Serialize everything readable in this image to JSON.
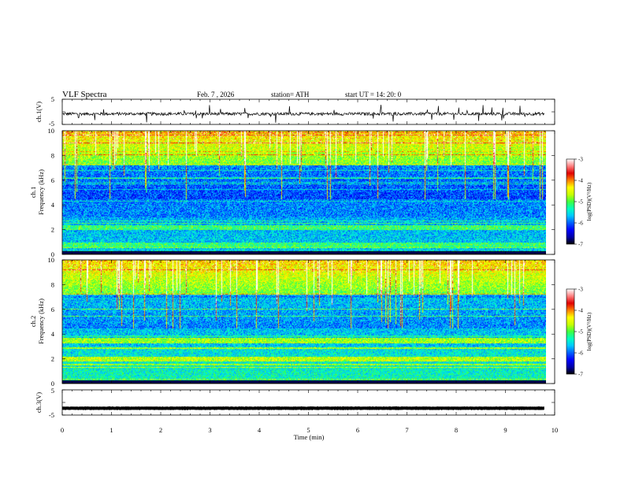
{
  "header": {
    "title": "VLF Spectra",
    "date": "Feb. 7 , 2026",
    "station": "station= ATH",
    "start_ut": "start UT =  14: 20: 0"
  },
  "colorbar": {
    "label": "log(PSD)(V²/Hz)",
    "ticks": [
      "-3",
      "-4",
      "-5",
      "-6",
      "-7"
    ],
    "colors": [
      "#000000",
      "#0000a8",
      "#0000ff",
      "#0060ff",
      "#00c8ff",
      "#00ffc0",
      "#40ff40",
      "#c8ff00",
      "#ffff00",
      "#ff8000",
      "#e00000",
      "#ff8080",
      "#ffffff"
    ]
  },
  "chart_data": [
    {
      "type": "line",
      "name": "ch1-waveform",
      "ylabel": "ch.1(V)",
      "yticks": [
        "5",
        "-5"
      ],
      "ylim": [
        -5,
        5
      ],
      "xlim": [
        0,
        10
      ],
      "baseline_value": -0.8,
      "noise_amplitude": 1.2,
      "data_end_min": 9.8
    },
    {
      "type": "heatmap",
      "name": "ch1-spectrogram",
      "ylabel": "ch.1\nFrequency (kHz)",
      "yticks": [
        "10",
        "8",
        "6",
        "4",
        "2",
        "0"
      ],
      "ylim": [
        0,
        10
      ],
      "xlim": [
        0,
        10
      ],
      "data_end_min": 9.8,
      "zlim": [
        -7,
        -3
      ]
    },
    {
      "type": "heatmap",
      "name": "ch2-spectrogram",
      "ylabel": "ch.2\nFrequency (kHz)",
      "yticks": [
        "10",
        "8",
        "6",
        "4",
        "2",
        "0"
      ],
      "ylim": [
        0,
        10
      ],
      "xlim": [
        0,
        10
      ],
      "data_end_min": 9.8,
      "zlim": [
        -7,
        -3
      ]
    },
    {
      "type": "line",
      "name": "ch3-waveform",
      "ylabel": "ch.3(V)",
      "yticks": [
        "5",
        "-5"
      ],
      "ylim": [
        -5,
        5
      ],
      "xlim": [
        0,
        10
      ],
      "baseline_value": -2.3,
      "noise_amplitude": 0.15,
      "data_end_min": 9.8
    }
  ],
  "xaxis": {
    "label": "Time (min)",
    "ticks": [
      "0",
      "1",
      "2",
      "3",
      "4",
      "5",
      "6",
      "7",
      "8",
      "9",
      "10"
    ]
  }
}
